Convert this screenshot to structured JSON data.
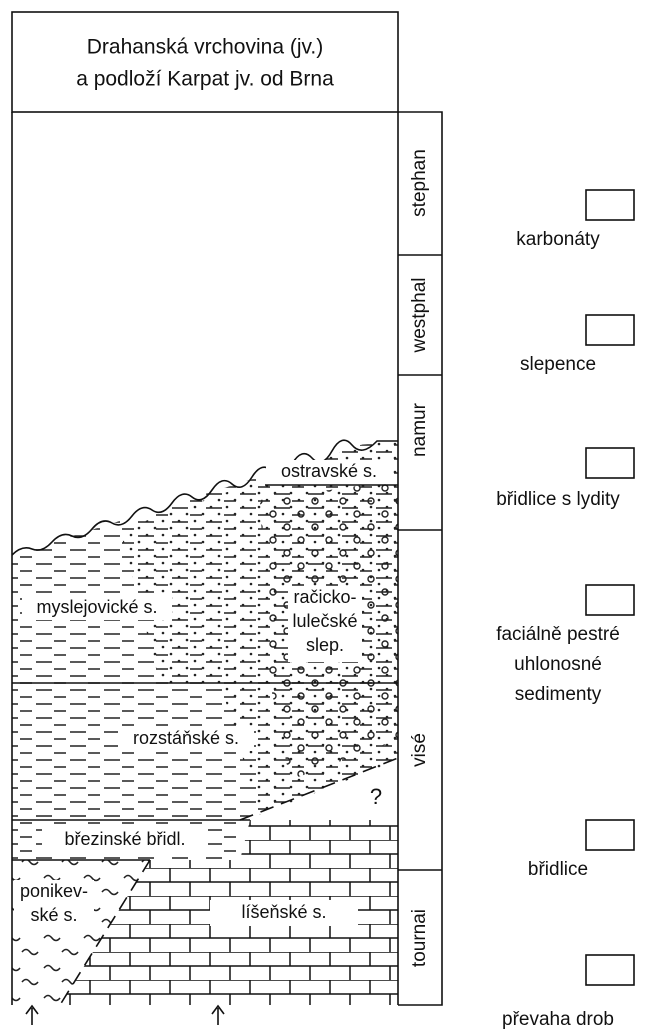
{
  "header": {
    "title": [
      "Drahanská vrchovina (jv.)",
      "a podloží Karpat jv. od Brna"
    ]
  },
  "stages": [
    "stephan",
    "westphal",
    "namur",
    "visé",
    "tournai"
  ],
  "units": [
    {
      "label": [
        "ostravské s."
      ]
    },
    {
      "label": [
        "myslejovické s."
      ]
    },
    {
      "label": [
        "račicko-",
        "lulečské",
        "slep."
      ]
    },
    {
      "label": [
        "rozstáňské s."
      ]
    },
    {
      "label": [
        "?"
      ]
    },
    {
      "label": [
        "březinské břidl."
      ]
    },
    {
      "label": [
        "ponikev-",
        "ské s."
      ]
    },
    {
      "label": [
        "líšeňské s."
      ]
    }
  ],
  "legend": [
    {
      "label": [
        "karbonáty"
      ]
    },
    {
      "label": [
        "slepence"
      ]
    },
    {
      "label": [
        "břidlice s lydity"
      ]
    },
    {
      "label": [
        "faciálně pestré",
        "uhlonosné",
        "sedimenty"
      ]
    },
    {
      "label": [
        "břidlice"
      ]
    },
    {
      "label": [
        "převaha drob"
      ]
    }
  ]
}
